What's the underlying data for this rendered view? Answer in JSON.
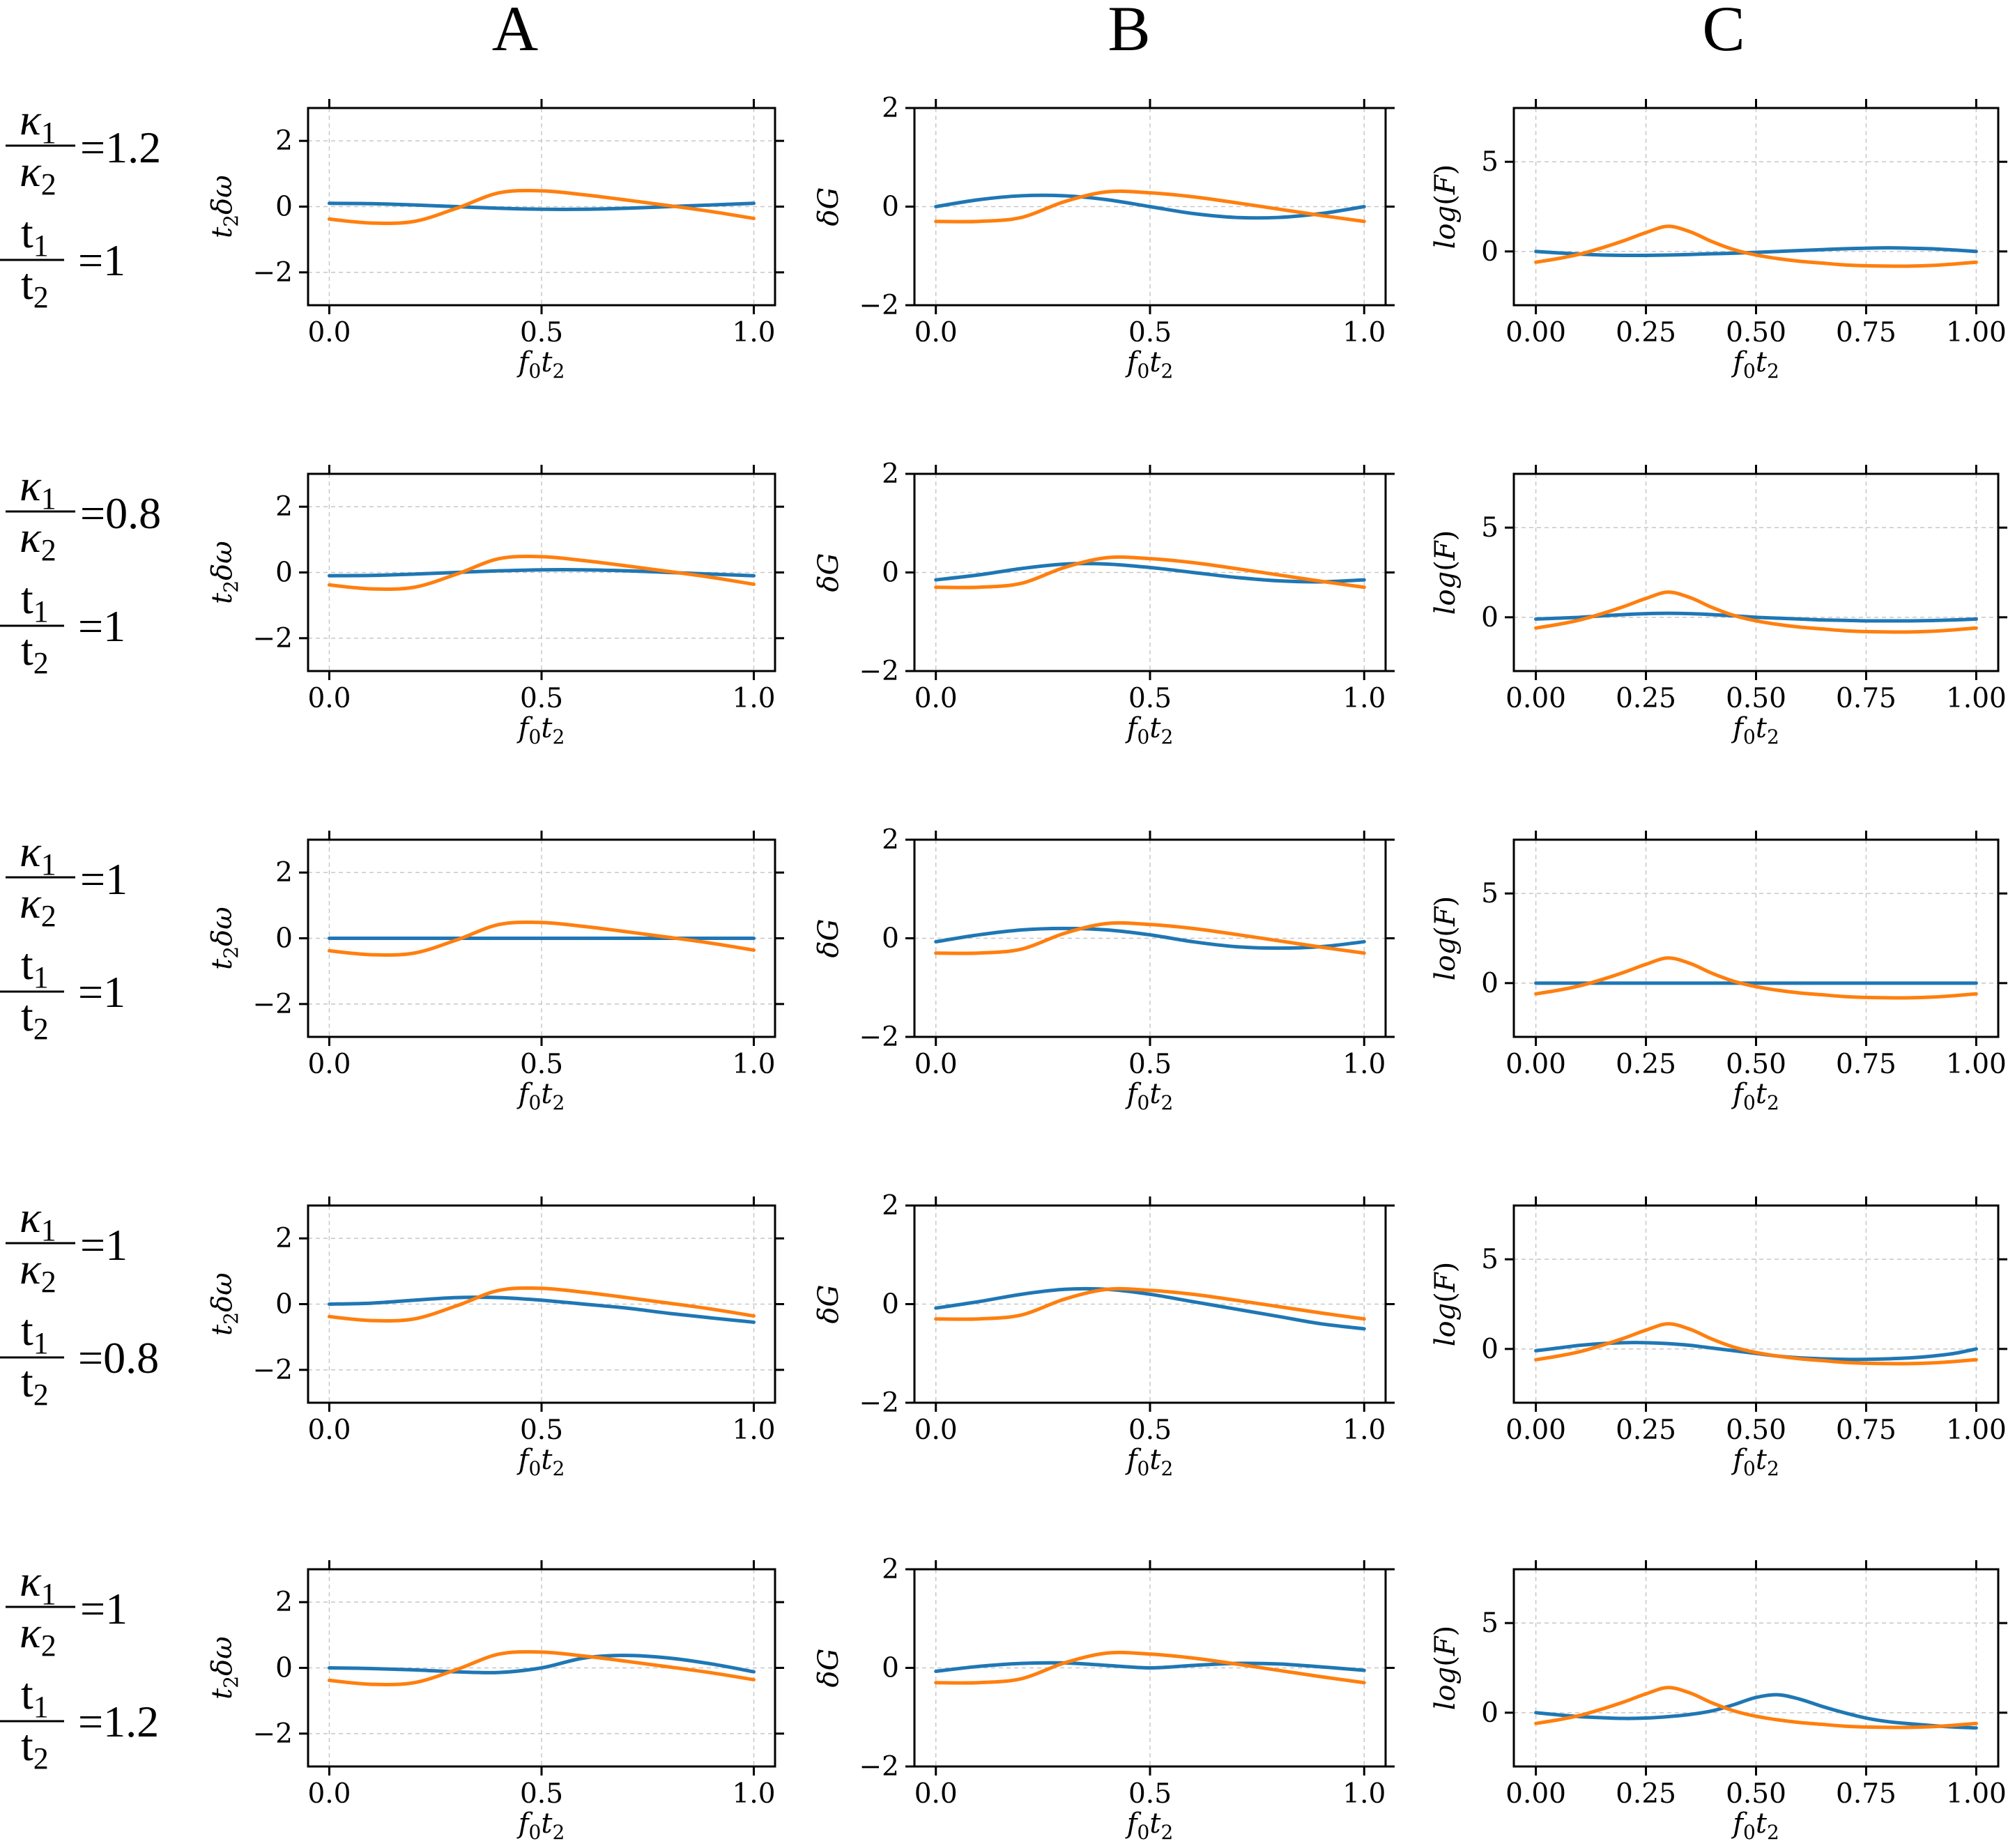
{
  "columns": [
    "A",
    "B",
    "C"
  ],
  "colors": {
    "series_1": "#1f77b4",
    "series_2": "#ff7f0e",
    "frame": "#000000",
    "grid": "#c8c8c8"
  },
  "rows": [
    {
      "kappa_label": "κ",
      "kappa_num_sub": "1",
      "kappa_den_sub": "2",
      "kappa_value": "=1.2",
      "t_num": "t",
      "t_num_sub": "1",
      "t_den": "t",
      "t_den_sub": "2",
      "t_value": "=1"
    },
    {
      "kappa_label": "κ",
      "kappa_num_sub": "1",
      "kappa_den_sub": "2",
      "kappa_value": "=0.8",
      "t_num": "t",
      "t_num_sub": "1",
      "t_den": "t",
      "t_den_sub": "2",
      "t_value": "=1"
    },
    {
      "kappa_label": "κ",
      "kappa_num_sub": "1",
      "kappa_den_sub": "2",
      "kappa_value": "=1",
      "t_num": "t",
      "t_num_sub": "1",
      "t_den": "t",
      "t_den_sub": "2",
      "t_value": "=1"
    },
    {
      "kappa_label": "κ",
      "kappa_num_sub": "1",
      "kappa_den_sub": "2",
      "kappa_value": "=1",
      "t_num": "t",
      "t_num_sub": "1",
      "t_den": "t",
      "t_den_sub": "2",
      "t_value": "=0.8"
    },
    {
      "kappa_label": "κ",
      "kappa_num_sub": "1",
      "kappa_den_sub": "2",
      "kappa_value": "=1",
      "t_num": "t",
      "t_num_sub": "1",
      "t_den": "t",
      "t_den_sub": "2",
      "t_value": "=1.2"
    }
  ],
  "chart_data": [
    {
      "panel": "A",
      "type": "line",
      "xlabel": "f0t2",
      "ylabel": "t2δω",
      "xlim": [
        -0.05,
        1.05
      ],
      "ylim": [
        -3,
        3
      ],
      "xticks": [
        0.0,
        0.5,
        1.0
      ],
      "xtick_labels": [
        "0.0",
        "0.5",
        "1.0"
      ],
      "yticks": [
        -2,
        0,
        2
      ],
      "ytick_labels": [
        "−2",
        "0",
        "2"
      ],
      "grid": true,
      "x": [
        0.0,
        0.1,
        0.2,
        0.3,
        0.4,
        0.5,
        0.6,
        0.7,
        0.8,
        0.9,
        1.0
      ],
      "rows": [
        {
          "series": [
            {
              "values": [
                0.1,
                0.09,
                0.05,
                0.0,
                -0.05,
                -0.08,
                -0.08,
                -0.05,
                0.0,
                0.05,
                0.1
              ]
            },
            {
              "values": [
                -0.38,
                -0.5,
                -0.45,
                -0.05,
                0.42,
                0.48,
                0.36,
                0.2,
                0.03,
                -0.15,
                -0.36
              ]
            }
          ]
        },
        {
          "series": [
            {
              "values": [
                -0.1,
                -0.09,
                -0.05,
                0.0,
                0.05,
                0.08,
                0.08,
                0.05,
                0.0,
                -0.05,
                -0.1
              ]
            },
            {
              "values": [
                -0.38,
                -0.5,
                -0.45,
                -0.05,
                0.42,
                0.48,
                0.36,
                0.2,
                0.03,
                -0.15,
                -0.36
              ]
            }
          ]
        },
        {
          "series": [
            {
              "values": [
                0,
                0,
                0,
                0,
                0,
                0,
                0,
                0,
                0,
                0,
                0
              ]
            },
            {
              "values": [
                -0.38,
                -0.5,
                -0.45,
                -0.05,
                0.42,
                0.48,
                0.36,
                0.2,
                0.03,
                -0.15,
                -0.36
              ]
            }
          ]
        },
        {
          "series": [
            {
              "values": [
                0.0,
                0.03,
                0.12,
                0.2,
                0.2,
                0.12,
                0.0,
                -0.12,
                -0.28,
                -0.42,
                -0.55
              ]
            },
            {
              "values": [
                -0.38,
                -0.5,
                -0.45,
                -0.05,
                0.42,
                0.48,
                0.36,
                0.2,
                0.03,
                -0.15,
                -0.36
              ]
            }
          ]
        },
        {
          "series": [
            {
              "values": [
                0.0,
                -0.02,
                -0.06,
                -0.12,
                -0.14,
                0.0,
                0.3,
                0.38,
                0.3,
                0.12,
                -0.12
              ]
            },
            {
              "values": [
                -0.38,
                -0.5,
                -0.45,
                -0.05,
                0.42,
                0.48,
                0.36,
                0.2,
                0.03,
                -0.15,
                -0.36
              ]
            }
          ]
        }
      ]
    },
    {
      "panel": "B",
      "type": "line",
      "xlabel": "f0t2",
      "ylabel": "δG",
      "xlim": [
        -0.05,
        1.05
      ],
      "ylim": [
        -2,
        2
      ],
      "xticks": [
        0.0,
        0.5,
        1.0
      ],
      "xtick_labels": [
        "0.0",
        "0.5",
        "1.0"
      ],
      "yticks": [
        -2,
        0,
        2
      ],
      "ytick_labels": [
        "−2",
        "0",
        "2"
      ],
      "grid": true,
      "x": [
        0.0,
        0.1,
        0.2,
        0.3,
        0.4,
        0.5,
        0.6,
        0.7,
        0.8,
        0.9,
        1.0
      ],
      "rows": [
        {
          "series": [
            {
              "values": [
                0.0,
                0.14,
                0.22,
                0.22,
                0.14,
                0.0,
                -0.14,
                -0.22,
                -0.22,
                -0.14,
                0.0
              ]
            },
            {
              "values": [
                -0.3,
                -0.3,
                -0.22,
                0.1,
                0.3,
                0.28,
                0.2,
                0.08,
                -0.05,
                -0.18,
                -0.3
              ]
            }
          ]
        },
        {
          "series": [
            {
              "values": [
                -0.15,
                -0.05,
                0.08,
                0.17,
                0.17,
                0.1,
                0.0,
                -0.1,
                -0.17,
                -0.19,
                -0.15
              ]
            },
            {
              "values": [
                -0.3,
                -0.3,
                -0.22,
                0.1,
                0.3,
                0.28,
                0.2,
                0.08,
                -0.05,
                -0.18,
                -0.3
              ]
            }
          ]
        },
        {
          "series": [
            {
              "values": [
                -0.07,
                0.07,
                0.17,
                0.2,
                0.17,
                0.07,
                -0.07,
                -0.17,
                -0.2,
                -0.17,
                -0.07
              ]
            },
            {
              "values": [
                -0.3,
                -0.3,
                -0.22,
                0.1,
                0.3,
                0.28,
                0.2,
                0.08,
                -0.05,
                -0.18,
                -0.3
              ]
            }
          ]
        },
        {
          "series": [
            {
              "values": [
                -0.08,
                0.05,
                0.2,
                0.3,
                0.3,
                0.2,
                0.05,
                -0.1,
                -0.25,
                -0.4,
                -0.5
              ]
            },
            {
              "values": [
                -0.3,
                -0.3,
                -0.22,
                0.1,
                0.3,
                0.28,
                0.2,
                0.08,
                -0.05,
                -0.18,
                -0.3
              ]
            }
          ]
        },
        {
          "series": [
            {
              "values": [
                -0.07,
                0.03,
                0.09,
                0.1,
                0.05,
                0.0,
                0.05,
                0.09,
                0.08,
                0.02,
                -0.05
              ]
            },
            {
              "values": [
                -0.3,
                -0.3,
                -0.22,
                0.1,
                0.3,
                0.28,
                0.2,
                0.08,
                -0.05,
                -0.18,
                -0.3
              ]
            }
          ]
        }
      ]
    },
    {
      "panel": "C",
      "type": "line",
      "xlabel": "f0t2",
      "ylabel": "log(F)",
      "xlim": [
        -0.05,
        1.05
      ],
      "ylim": [
        -3,
        8
      ],
      "xticks": [
        0.0,
        0.25,
        0.5,
        0.75,
        1.0
      ],
      "xtick_labels": [
        "0.00",
        "0.25",
        "0.50",
        "0.75",
        "1.00"
      ],
      "yticks": [
        0,
        5
      ],
      "ytick_labels": [
        "0",
        "5"
      ],
      "grid": true,
      "x": [
        0.0,
        0.05,
        0.1,
        0.15,
        0.2,
        0.25,
        0.3,
        0.35,
        0.4,
        0.45,
        0.5,
        0.55,
        0.6,
        0.65,
        0.7,
        0.75,
        0.8,
        0.85,
        0.9,
        0.95,
        1.0
      ],
      "rows": [
        {
          "series": [
            {
              "values": [
                0.0,
                -0.08,
                -0.15,
                -0.2,
                -0.22,
                -0.22,
                -0.2,
                -0.17,
                -0.13,
                -0.1,
                -0.05,
                0.0,
                0.05,
                0.1,
                0.15,
                0.18,
                0.2,
                0.18,
                0.15,
                0.08,
                0.0
              ]
            },
            {
              "values": [
                -0.6,
                -0.4,
                -0.15,
                0.2,
                0.6,
                1.05,
                1.4,
                1.1,
                0.55,
                0.1,
                -0.2,
                -0.4,
                -0.55,
                -0.65,
                -0.75,
                -0.8,
                -0.82,
                -0.82,
                -0.78,
                -0.7,
                -0.6
              ]
            }
          ]
        },
        {
          "series": [
            {
              "values": [
                -0.1,
                -0.05,
                0.0,
                0.08,
                0.15,
                0.2,
                0.22,
                0.2,
                0.15,
                0.08,
                0.0,
                -0.05,
                -0.1,
                -0.15,
                -0.17,
                -0.2,
                -0.2,
                -0.2,
                -0.18,
                -0.15,
                -0.1
              ]
            },
            {
              "values": [
                -0.6,
                -0.4,
                -0.15,
                0.2,
                0.6,
                1.05,
                1.4,
                1.1,
                0.55,
                0.1,
                -0.2,
                -0.4,
                -0.55,
                -0.65,
                -0.75,
                -0.8,
                -0.82,
                -0.82,
                -0.78,
                -0.7,
                -0.6
              ]
            }
          ]
        },
        {
          "series": [
            {
              "values": [
                0,
                0,
                0,
                0,
                0,
                0,
                0,
                0,
                0,
                0,
                0,
                0,
                0,
                0,
                0,
                0,
                0,
                0,
                0,
                0,
                0
              ]
            },
            {
              "values": [
                -0.6,
                -0.4,
                -0.15,
                0.2,
                0.6,
                1.05,
                1.4,
                1.1,
                0.55,
                0.1,
                -0.2,
                -0.4,
                -0.55,
                -0.65,
                -0.75,
                -0.8,
                -0.82,
                -0.82,
                -0.78,
                -0.7,
                -0.6
              ]
            }
          ]
        },
        {
          "series": [
            {
              "values": [
                -0.1,
                0.05,
                0.2,
                0.3,
                0.35,
                0.35,
                0.3,
                0.2,
                0.05,
                -0.1,
                -0.25,
                -0.4,
                -0.5,
                -0.55,
                -0.58,
                -0.58,
                -0.55,
                -0.5,
                -0.4,
                -0.25,
                0.0
              ]
            },
            {
              "values": [
                -0.6,
                -0.4,
                -0.15,
                0.2,
                0.6,
                1.05,
                1.4,
                1.1,
                0.55,
                0.1,
                -0.2,
                -0.4,
                -0.55,
                -0.65,
                -0.75,
                -0.8,
                -0.82,
                -0.82,
                -0.78,
                -0.7,
                -0.6
              ]
            }
          ]
        },
        {
          "series": [
            {
              "values": [
                0.0,
                -0.12,
                -0.22,
                -0.28,
                -0.32,
                -0.3,
                -0.22,
                -0.1,
                0.1,
                0.45,
                0.85,
                1.0,
                0.75,
                0.35,
                0.0,
                -0.3,
                -0.5,
                -0.62,
                -0.72,
                -0.8,
                -0.85
              ]
            },
            {
              "values": [
                -0.6,
                -0.4,
                -0.15,
                0.2,
                0.6,
                1.05,
                1.4,
                1.1,
                0.55,
                0.1,
                -0.2,
                -0.4,
                -0.55,
                -0.65,
                -0.75,
                -0.8,
                -0.82,
                -0.82,
                -0.78,
                -0.7,
                -0.6
              ]
            }
          ]
        }
      ]
    }
  ]
}
